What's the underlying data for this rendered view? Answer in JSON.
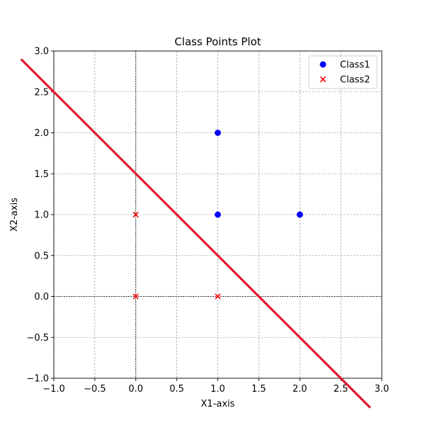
{
  "chart_data": {
    "type": "scatter",
    "title": "Class Points Plot",
    "xlabel": "X1-axis",
    "ylabel": "X2-axis",
    "xlim": [
      -1,
      3
    ],
    "ylim": [
      -1,
      3
    ],
    "xticks": [
      -1.0,
      -0.5,
      0.0,
      0.5,
      1.0,
      1.5,
      2.0,
      2.5,
      3.0
    ],
    "yticks": [
      -1.0,
      -0.5,
      0.0,
      0.5,
      1.0,
      1.5,
      2.0,
      2.5,
      3.0
    ],
    "xtick_labels": [
      "−1.0",
      "−0.5",
      "0.0",
      "0.5",
      "1.0",
      "1.5",
      "2.0",
      "2.5",
      "3.0"
    ],
    "ytick_labels": [
      "−1.0",
      "−0.5",
      "0.0",
      "0.5",
      "1.0",
      "1.5",
      "2.0",
      "2.5",
      "3.0"
    ],
    "grid": true,
    "legend_position": "top-right",
    "series": [
      {
        "name": "Class1",
        "marker": "circle",
        "color": "#0000ff",
        "points": [
          [
            1,
            2
          ],
          [
            1,
            1
          ],
          [
            2,
            1
          ]
        ]
      },
      {
        "name": "Class2",
        "marker": "x",
        "color": "#ff0000",
        "points": [
          [
            0,
            1
          ],
          [
            0,
            0
          ],
          [
            1,
            0
          ]
        ]
      }
    ],
    "decision_line": {
      "equation": "x1 + x2 = 1.5",
      "color": "#e31a2c",
      "x_range": [
        -1.4,
        2.86
      ]
    },
    "zero_lines": true
  }
}
